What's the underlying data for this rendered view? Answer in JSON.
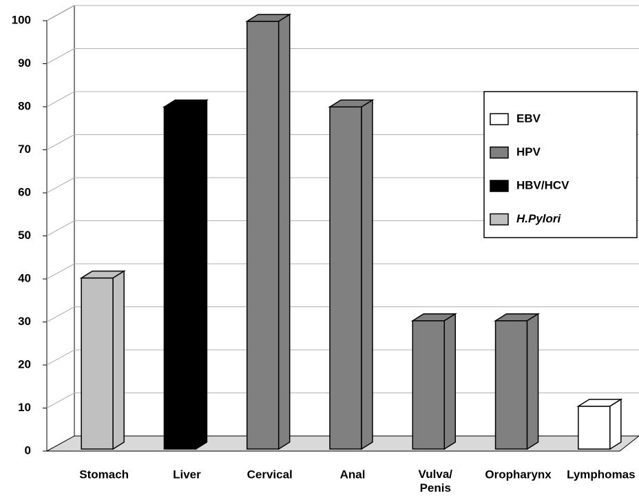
{
  "chart_data": {
    "type": "bar3d",
    "categories": [
      "Stomach",
      "Liver",
      "Cervical",
      "Anal",
      "Vulva/ Penis",
      "Oropharynx",
      "Lymphomas"
    ],
    "series": [
      {
        "name": "EBV",
        "color": "#ffffff",
        "values": [
          null,
          null,
          null,
          null,
          null,
          null,
          10
        ]
      },
      {
        "name": "HPV",
        "color": "#808080",
        "values": [
          null,
          null,
          100,
          80,
          30,
          30,
          null
        ]
      },
      {
        "name": "HBV/HCV",
        "color": "#000000",
        "values": [
          null,
          80,
          null,
          null,
          null,
          null,
          null
        ]
      },
      {
        "name": "H.Pylori",
        "color": "#c0c0c0",
        "values": [
          40,
          null,
          null,
          null,
          null,
          null,
          null
        ],
        "italic": true
      }
    ],
    "ylim": [
      0,
      100
    ],
    "yticks": [
      0,
      10,
      20,
      30,
      40,
      50,
      60,
      70,
      80,
      90,
      100
    ],
    "grid": true,
    "legend": "right"
  }
}
